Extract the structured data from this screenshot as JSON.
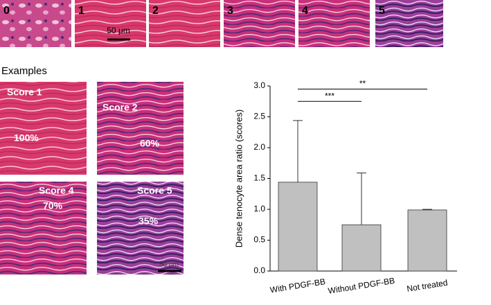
{
  "score_strip": {
    "labels": [
      "0",
      "1",
      "2",
      "3",
      "4",
      "5"
    ],
    "scale_bar": "50 μm"
  },
  "examples": {
    "title": "Examples",
    "panels": [
      {
        "score": "Score 1",
        "percent": "100%"
      },
      {
        "score": "Score 2",
        "percent": "60%"
      },
      {
        "score": "Score 4",
        "percent": "70%"
      },
      {
        "score": "Score 5",
        "percent": "35%"
      }
    ],
    "scale_bar": "50 μm"
  },
  "chart_data": {
    "type": "bar",
    "y_label": "Dense tenocyte area ratio (scores)",
    "categories": [
      "With PDGF-BB",
      "Without PDGF-BB",
      "Not treated"
    ],
    "values": [
      1.44,
      0.75,
      0.99
    ],
    "errors": [
      1.0,
      0.84,
      0.01
    ],
    "color": "#c0c0c0",
    "ylim": [
      0,
      3
    ],
    "yticks": [
      {
        "value": 0,
        "label": "0.0"
      },
      {
        "value": 0.5,
        "label": "0.5"
      },
      {
        "value": 1,
        "label": "1.0"
      },
      {
        "value": 1.5,
        "label": "1.5"
      },
      {
        "value": 2,
        "label": "2.0"
      },
      {
        "value": 2.5,
        "label": "2.5"
      },
      {
        "value": 3,
        "label": "3.0"
      }
    ],
    "annotations": [
      {
        "text": "***",
        "from": 0,
        "to": 1,
        "y": 2.75
      },
      {
        "text": "**",
        "from": 0,
        "to": 2,
        "y": 2.95
      }
    ]
  }
}
